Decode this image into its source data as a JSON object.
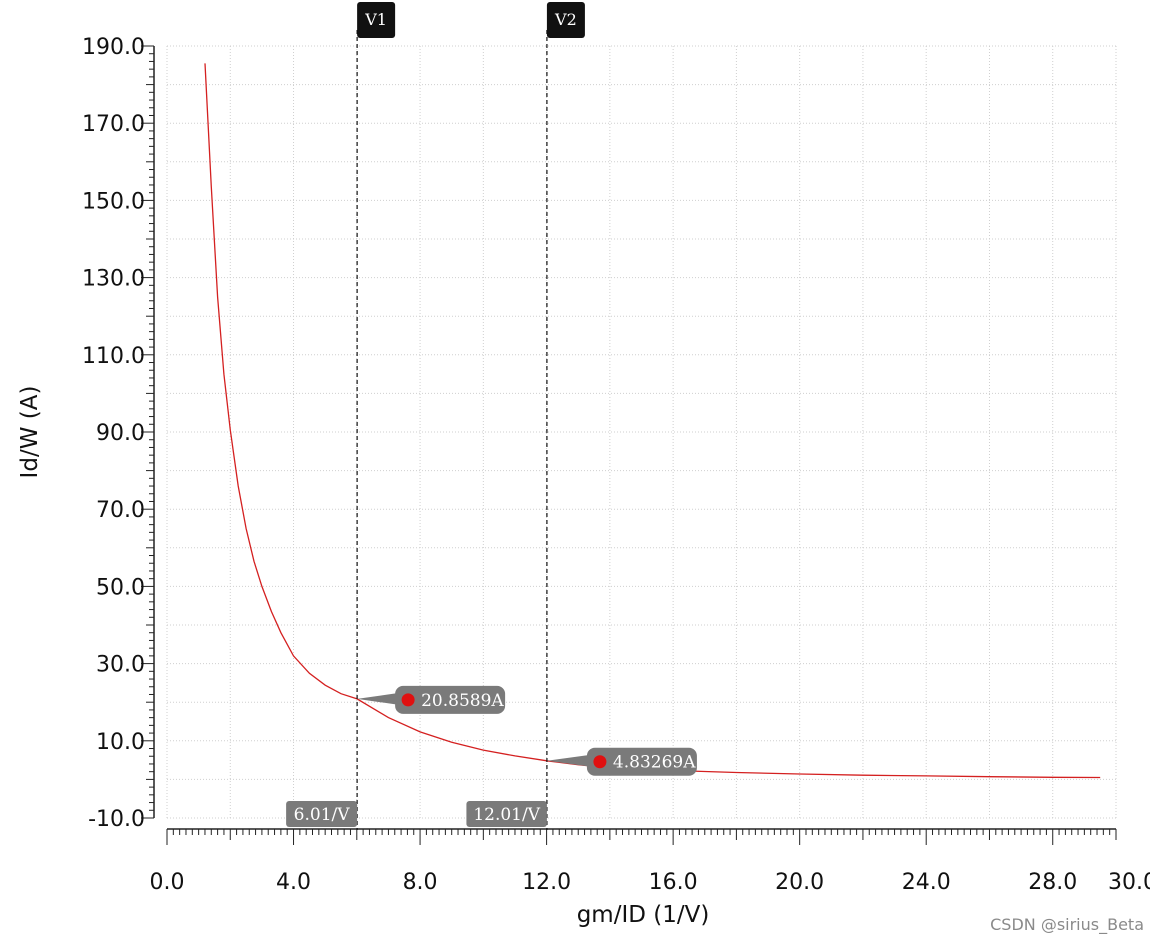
{
  "chart_data": {
    "type": "line",
    "xlabel": "gm/ID (1/V)",
    "ylabel": "Id/W (A)",
    "xlim": [
      0,
      30
    ],
    "ylim": [
      -10,
      190
    ],
    "x_ticks": [
      "0.0",
      "4.0",
      "8.0",
      "12.0",
      "16.0",
      "20.0",
      "24.0",
      "28.0",
      "30.0"
    ],
    "y_ticks": [
      "-10.0",
      "10.0",
      "30.0",
      "50.0",
      "70.0",
      "90.0",
      "110.0",
      "130.0",
      "150.0",
      "170.0",
      "190.0"
    ],
    "grid": true,
    "series": [
      {
        "color": "#d42020",
        "x": [
          1.2,
          1.4,
          1.6,
          1.8,
          2.0,
          2.25,
          2.5,
          2.75,
          3.0,
          3.3,
          3.6,
          4.0,
          4.5,
          5.0,
          5.5,
          6.01,
          7.0,
          8.0,
          9.0,
          10.0,
          11.0,
          12.01,
          13.0,
          14.0,
          16.0,
          18.0,
          20.0,
          22.0,
          24.0,
          26.0,
          28.0,
          29.5
        ],
        "y": [
          185.5,
          153.5,
          125.0,
          105.0,
          90.5,
          76.0,
          65.0,
          56.5,
          50.0,
          43.5,
          38.0,
          32.0,
          27.5,
          24.4,
          22.2,
          20.86,
          16.0,
          12.3,
          9.6,
          7.6,
          6.1,
          4.83,
          3.8,
          3.0,
          2.3,
          1.8,
          1.4,
          1.1,
          0.9,
          0.7,
          0.55,
          0.5
        ]
      }
    ],
    "cursors": [
      {
        "label": "V1",
        "x": 6.01,
        "x_label": "6.01/V",
        "y": 20.8589,
        "y_label": "20.8589A"
      },
      {
        "label": "V2",
        "x": 12.01,
        "x_label": "12.01/V",
        "y": 4.83269,
        "y_label": "4.83269A"
      }
    ]
  },
  "watermark": "CSDN @sirius_Beta"
}
